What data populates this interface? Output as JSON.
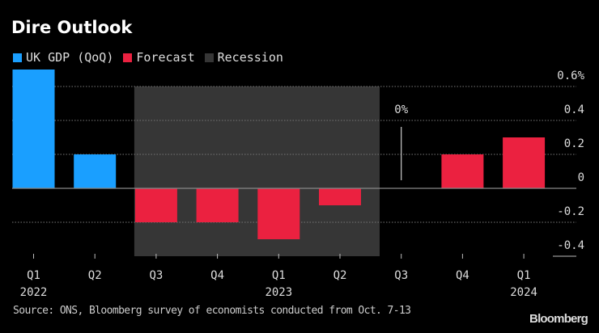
{
  "chart_data": {
    "type": "bar",
    "title": "Dire Outlook",
    "categories": [
      "Q1",
      "Q2",
      "Q3",
      "Q4",
      "Q1",
      "Q2",
      "Q3",
      "Q4",
      "Q1"
    ],
    "year_labels": [
      "2022",
      "",
      "",
      "",
      "2023",
      "",
      "",
      "",
      "2024"
    ],
    "values": [
      0.7,
      0.2,
      -0.2,
      -0.2,
      -0.3,
      -0.1,
      0,
      0.2,
      0.3
    ],
    "series_kind": [
      "UK GDP (QoQ)",
      "UK GDP (QoQ)",
      "Forecast",
      "Forecast",
      "Forecast",
      "Forecast",
      "Forecast",
      "Forecast",
      "Forecast"
    ],
    "legend": [
      {
        "label": "UK GDP (QoQ)",
        "color": "#1a9fff"
      },
      {
        "label": "Forecast",
        "color": "#eb2140"
      },
      {
        "label": "Recession",
        "color": "#363636"
      }
    ],
    "recession": {
      "from_index": 2,
      "to_index": 5
    },
    "annotation": {
      "index": 6,
      "text": "0%"
    },
    "yticks": [
      0.6,
      0.4,
      0.2,
      0,
      -0.2,
      -0.4
    ],
    "ytick_labels": [
      "0.6%",
      "0.4",
      "0.2",
      "0",
      "-0.2",
      "-0.4"
    ],
    "ylim": [
      -0.4,
      0.7
    ],
    "grid": true,
    "legend_placement": "top-left",
    "source": "Source: ONS, Bloomberg survey of economists conducted from Oct. 7-13",
    "logo": "Bloomberg"
  }
}
